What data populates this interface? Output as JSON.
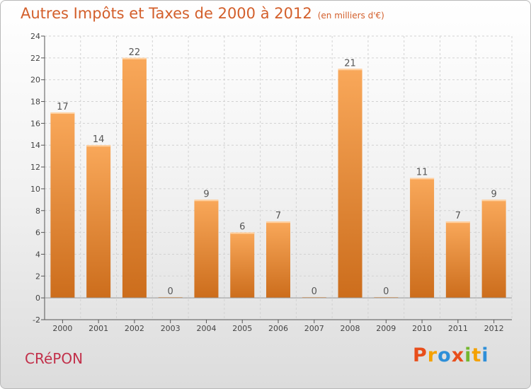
{
  "title": "Autres Impôts et Taxes de 2000 à 2012",
  "subtitle": "(en milliers d'€)",
  "commune": "CRéPON",
  "logo_text": "Proxiti",
  "colors": {
    "bar_light": "#f9a85a",
    "bar_dark": "#cc6d1c",
    "title": "#d35f2b",
    "commune": "#c2304a",
    "logo": [
      "#e84e1b",
      "#f4a100",
      "#2e8fd8",
      "#e84e1b",
      "#74b72e",
      "#f4a100",
      "#2e8fd8"
    ]
  },
  "chart_data": {
    "type": "bar",
    "categories": [
      "2000",
      "2001",
      "2002",
      "2003",
      "2004",
      "2005",
      "2006",
      "2007",
      "2008",
      "2009",
      "2010",
      "2011",
      "2012"
    ],
    "values": [
      17,
      14,
      22,
      0,
      9,
      6,
      7,
      0,
      21,
      0,
      11,
      7,
      9
    ],
    "data_labels": [
      "17",
      "14",
      "22",
      "0",
      "9",
      "6",
      "7",
      "0",
      "21",
      "0",
      "11",
      "7",
      "9"
    ],
    "ylim": [
      -2,
      24
    ],
    "yticks": [
      "-2",
      "0",
      "2",
      "4",
      "6",
      "8",
      "10",
      "12",
      "14",
      "16",
      "18",
      "20",
      "22",
      "24"
    ],
    "grid": true,
    "xlabel": "",
    "ylabel": ""
  }
}
